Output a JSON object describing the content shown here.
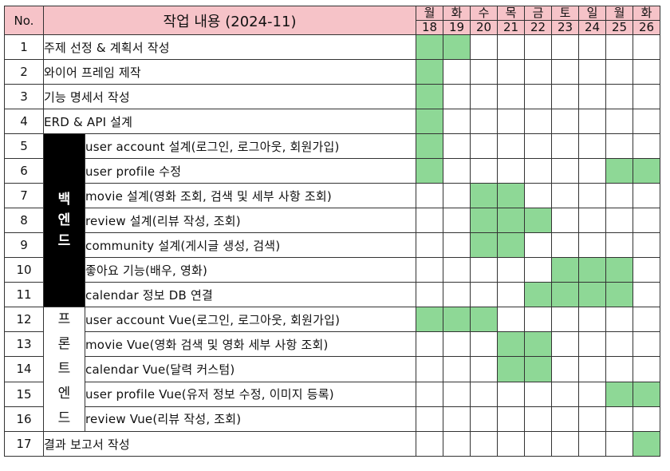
{
  "header": {
    "no": "No.",
    "task": "작업 내용 (2024-11)",
    "days": [
      {
        "name": "월",
        "num": "18"
      },
      {
        "name": "화",
        "num": "19"
      },
      {
        "name": "수",
        "num": "20"
      },
      {
        "name": "목",
        "num": "21"
      },
      {
        "name": "금",
        "num": "22"
      },
      {
        "name": "토",
        "num": "23"
      },
      {
        "name": "일",
        "num": "24"
      },
      {
        "name": "월",
        "num": "25"
      },
      {
        "name": "화",
        "num": "26"
      }
    ]
  },
  "groups": {
    "backend": {
      "label": "백엔드",
      "chars": [
        "백",
        "엔",
        "드"
      ]
    },
    "frontend": {
      "label": "프론트엔드",
      "chars": [
        "프",
        "론",
        "트",
        "엔",
        "드"
      ]
    }
  },
  "colors": {
    "header_bg": "#f6c3c8",
    "filled": "#8ed896",
    "group_bg": "#000000"
  },
  "rows": [
    {
      "no": "1",
      "task": "주제 선정 & 계획서 작성",
      "group": "",
      "active": [
        1,
        1,
        0,
        0,
        0,
        0,
        0,
        0,
        0
      ]
    },
    {
      "no": "2",
      "task": "와이어 프레임 제작",
      "group": "",
      "active": [
        1,
        0,
        0,
        0,
        0,
        0,
        0,
        0,
        0
      ]
    },
    {
      "no": "3",
      "task": "기능 명세서 작성",
      "group": "",
      "active": [
        1,
        0,
        0,
        0,
        0,
        0,
        0,
        0,
        0
      ]
    },
    {
      "no": "4",
      "task": "ERD & API 설계",
      "group": "",
      "active": [
        1,
        0,
        0,
        0,
        0,
        0,
        0,
        0,
        0
      ]
    },
    {
      "no": "5",
      "task": "user account 설계(로그인, 로그아웃, 회원가입)",
      "group": "backend",
      "active": [
        1,
        0,
        0,
        0,
        0,
        0,
        0,
        0,
        0
      ]
    },
    {
      "no": "6",
      "task": "user profile 수정",
      "group": "backend",
      "active": [
        1,
        0,
        0,
        0,
        0,
        0,
        0,
        1,
        1
      ]
    },
    {
      "no": "7",
      "task": "movie 설계(영화 조회, 검색 및 세부 사항 조회)",
      "group": "backend",
      "active": [
        0,
        0,
        1,
        1,
        0,
        0,
        0,
        0,
        0
      ]
    },
    {
      "no": "8",
      "task": "review 설계(리뷰 작성, 조회)",
      "group": "backend",
      "active": [
        0,
        0,
        1,
        1,
        1,
        0,
        0,
        0,
        0
      ]
    },
    {
      "no": "9",
      "task": "community 설계(게시글 생성, 검색)",
      "group": "backend",
      "active": [
        0,
        0,
        1,
        1,
        0,
        0,
        0,
        0,
        0
      ]
    },
    {
      "no": "10",
      "task": "좋아요 기능(배우, 영화)",
      "group": "backend",
      "active": [
        0,
        0,
        0,
        0,
        0,
        1,
        1,
        1,
        0
      ]
    },
    {
      "no": "11",
      "task": "calendar 정보 DB 연결",
      "group": "backend",
      "active": [
        0,
        0,
        0,
        0,
        1,
        1,
        1,
        1,
        0
      ]
    },
    {
      "no": "12",
      "task": "user account Vue(로그인, 로그아웃, 회원가입)",
      "group": "frontend",
      "active": [
        1,
        1,
        1,
        0,
        0,
        0,
        0,
        0,
        0
      ]
    },
    {
      "no": "13",
      "task": "movie Vue(영화 검색 및 영화 세부 사항 조회)",
      "group": "frontend",
      "active": [
        0,
        0,
        0,
        1,
        1,
        0,
        0,
        0,
        0
      ]
    },
    {
      "no": "14",
      "task": "calendar Vue(달력 커스텀)",
      "group": "frontend",
      "active": [
        0,
        0,
        0,
        1,
        1,
        0,
        0,
        0,
        0
      ]
    },
    {
      "no": "15",
      "task": "user profile Vue(유저 정보 수정, 이미지 등록)",
      "group": "frontend",
      "active": [
        0,
        0,
        0,
        0,
        0,
        0,
        0,
        1,
        1
      ]
    },
    {
      "no": "16",
      "task": "review Vue(리뷰 작성, 조회)",
      "group": "frontend",
      "active": [
        0,
        0,
        0,
        0,
        0,
        0,
        0,
        0,
        0
      ]
    },
    {
      "no": "17",
      "task": "결과 보고서 작성",
      "group": "",
      "active": [
        0,
        0,
        0,
        0,
        0,
        0,
        0,
        0,
        1
      ]
    }
  ]
}
